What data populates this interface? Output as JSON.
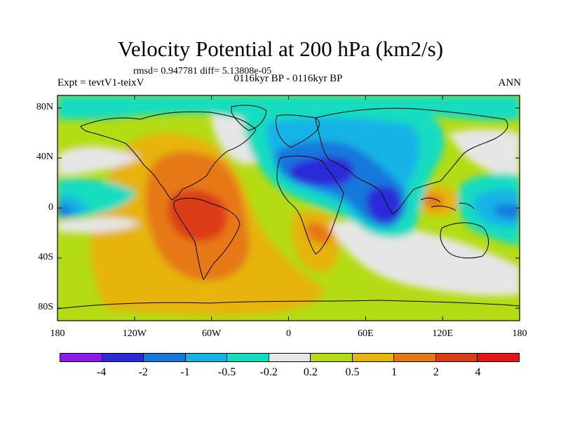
{
  "title": "Velocity Potential at 200 hPa (km2/s)",
  "stats": "rmsd= 0.947781  diff= 5.13808e-05",
  "experiment": "Expt = tevtV1-teixV",
  "period": "0116kyr BP - 0116kyr BP",
  "season": "ANN",
  "y_axis": {
    "labels": [
      "80N",
      "40N",
      "0",
      "40S",
      "80S"
    ],
    "values": [
      80,
      40,
      0,
      -40,
      -80
    ]
  },
  "x_axis": {
    "labels": [
      "180",
      "120W",
      "60W",
      "0",
      "60E",
      "120E",
      "180"
    ],
    "values": [
      -180,
      -120,
      -60,
      0,
      60,
      120,
      180
    ]
  },
  "colorbar": {
    "labels": [
      "-4",
      "-2",
      "-1",
      "-0.5",
      "-0.2",
      "0.2",
      "0.5",
      "1",
      "2",
      "4"
    ],
    "colors": [
      "#8c1aeb",
      "#2b2bd9",
      "#1478db",
      "#12b4e6",
      "#12dcc0",
      "#e6e6e6",
      "#b4dc14",
      "#e6b40a",
      "#e67814",
      "#dc3c14",
      "#e61414"
    ]
  },
  "chart_data": {
    "type": "contour-map",
    "title": "Velocity Potential at 200 hPa (km2/s)",
    "projection": "cylindrical equidistant",
    "lon_range": [
      -180,
      180
    ],
    "lat_range": [
      -90,
      90
    ],
    "levels": [
      -4,
      -2,
      -1,
      -0.5,
      -0.2,
      0.2,
      0.5,
      1,
      2,
      4
    ],
    "features": [
      {
        "name": "South America positive maximum",
        "lon": -62,
        "lat": -10,
        "value": 2
      },
      {
        "name": "Middle East negative minimum",
        "lon": 45,
        "lat": 28,
        "value": -2
      },
      {
        "name": "Indian Ocean negative minimum",
        "lon": 80,
        "lat": 2,
        "value": -2
      },
      {
        "name": "Southern Africa positive maximum",
        "lon": 30,
        "lat": -20,
        "value": 1
      },
      {
        "name": "Maritime Continent positive maximum",
        "lon": 118,
        "lat": 5,
        "value": 1
      },
      {
        "name": "Central Pacific negative minimum",
        "lon": 165,
        "lat": 0,
        "value": -1
      },
      {
        "name": "Eastern Pacific negative minimum",
        "lon": -168,
        "lat": 0,
        "value": -1
      },
      {
        "name": "Arctic negative band",
        "lon": 0,
        "lat": 82,
        "value": -0.5
      }
    ]
  }
}
